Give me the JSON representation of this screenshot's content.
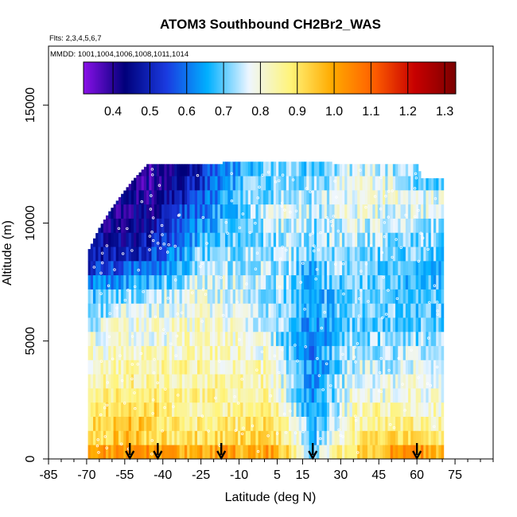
{
  "chart_data": {
    "type": "heatmap",
    "title": "ATOM3 Southbound CH2Br2_WAS",
    "annotations": {
      "flights": "Flts: 2,3,4,5,6,7",
      "dates": "MMDD: 1001,1004,1006,1008,1011,1014"
    },
    "xlabel": "Latitude (deg N)",
    "ylabel": "Altitude (m)",
    "xlim": [
      -85,
      90
    ],
    "ylim": [
      0,
      17500
    ],
    "x_ticks": [
      -85,
      -70,
      -55,
      -40,
      -25,
      -10,
      5,
      15,
      30,
      45,
      60,
      75
    ],
    "x_minor_ticks": [
      -80,
      -75,
      -65,
      -60,
      -50,
      -45,
      -35,
      -30,
      -20,
      -15,
      -5,
      0,
      10,
      20,
      25,
      35,
      40,
      50,
      55,
      65,
      70,
      80,
      85,
      90
    ],
    "y_ticks": [
      0,
      5000,
      10000,
      15000
    ],
    "colorbar": {
      "range": [
        0.32,
        1.33
      ],
      "ticks": [
        0.4,
        0.5,
        0.6,
        0.7,
        0.8,
        0.9,
        1.0,
        1.1,
        1.2,
        1.3
      ],
      "tick_labels": [
        "0.4",
        "0.5",
        "0.6",
        "0.7",
        "0.8",
        "0.9",
        "1.0",
        "1.1",
        "1.2",
        "1.3"
      ],
      "colors": [
        "#8a10e8",
        "#00007a",
        "#1a3ae0",
        "#00b0ff",
        "#eef6ff",
        "#fff47a",
        "#ffab00",
        "#ff6000",
        "#c80000",
        "#7a0000"
      ]
    },
    "altitude_bins": [
      0,
      600,
      1200,
      1800,
      2400,
      3000,
      3600,
      4200,
      4800,
      5400,
      6000,
      6600,
      7200,
      7800,
      8400,
      9000,
      9600,
      10200,
      10800,
      11400,
      12000,
      12600
    ],
    "column_top_altitude": [
      {
        "lat": -69,
        "top": 8900
      },
      {
        "lat": -65,
        "top": 9800
      },
      {
        "lat": -61,
        "top": 10500
      },
      {
        "lat": -57,
        "top": 11100
      },
      {
        "lat": -52,
        "top": 11800
      },
      {
        "lat": -46,
        "top": 12500
      },
      {
        "lat": -17,
        "top": 12500
      },
      {
        "lat": -16,
        "top": 12900
      },
      {
        "lat": 26,
        "top": 12900
      },
      {
        "lat": 27,
        "top": 12500
      },
      {
        "lat": 60,
        "top": 12500
      },
      {
        "lat": 62,
        "top": 11900
      },
      {
        "lat": 70,
        "top": 11900
      }
    ],
    "profiles": [
      {
        "lat": -69,
        "values": [
          1.02,
          0.92,
          0.9,
          0.88,
          0.86,
          0.84,
          0.82,
          0.8,
          0.78,
          0.75,
          0.72,
          0.68,
          0.6,
          0.52,
          0.48
        ]
      },
      {
        "lat": -60,
        "values": [
          1.02,
          0.95,
          0.93,
          0.92,
          0.88,
          0.85,
          0.85,
          0.82,
          0.8,
          0.78,
          0.74,
          0.7,
          0.62,
          0.55,
          0.48,
          0.45,
          0.42
        ]
      },
      {
        "lat": -52,
        "values": [
          1.05,
          0.97,
          0.98,
          0.92,
          0.88,
          0.86,
          0.84,
          0.82,
          0.8,
          0.8,
          0.78,
          0.72,
          0.65,
          0.58,
          0.5,
          0.46,
          0.44,
          0.42,
          0.42,
          0.4
        ]
      },
      {
        "lat": -44,
        "values": [
          1.02,
          0.92,
          0.9,
          0.92,
          0.88,
          0.86,
          0.85,
          0.83,
          0.8,
          0.82,
          0.78,
          0.74,
          0.66,
          0.6,
          0.55,
          0.5,
          0.46,
          0.44,
          0.42,
          0.4,
          0.4
        ]
      },
      {
        "lat": -35,
        "values": [
          0.98,
          0.9,
          0.88,
          0.86,
          0.85,
          0.84,
          0.84,
          0.82,
          0.8,
          0.8,
          0.78,
          0.76,
          0.72,
          0.66,
          0.62,
          0.58,
          0.55,
          0.52,
          0.48,
          0.46,
          0.44
        ]
      },
      {
        "lat": -26,
        "values": [
          0.98,
          0.9,
          0.88,
          0.86,
          0.86,
          0.85,
          0.84,
          0.84,
          0.82,
          0.82,
          0.8,
          0.78,
          0.76,
          0.72,
          0.7,
          0.66,
          0.62,
          0.6,
          0.56,
          0.52,
          0.5
        ]
      },
      {
        "lat": -17,
        "values": [
          1.02,
          0.9,
          0.88,
          0.86,
          0.85,
          0.84,
          0.83,
          0.82,
          0.82,
          0.8,
          0.8,
          0.78,
          0.76,
          0.74,
          0.72,
          0.7,
          0.68,
          0.66,
          0.64,
          0.62,
          0.62,
          0.64
        ]
      },
      {
        "lat": -8,
        "values": [
          0.98,
          0.92,
          0.88,
          0.86,
          0.85,
          0.84,
          0.84,
          0.82,
          0.8,
          0.78,
          0.78,
          0.76,
          0.76,
          0.74,
          0.74,
          0.72,
          0.72,
          0.7,
          0.7,
          0.68,
          0.66,
          0.65
        ]
      },
      {
        "lat": 1,
        "values": [
          1.02,
          0.94,
          0.9,
          0.88,
          0.86,
          0.84,
          0.82,
          0.8,
          0.78,
          0.76,
          0.75,
          0.74,
          0.74,
          0.74,
          0.72,
          0.72,
          0.74,
          0.74,
          0.72,
          0.7,
          0.7,
          0.68
        ]
      },
      {
        "lat": 10,
        "values": [
          0.92,
          0.85,
          0.82,
          0.78,
          0.76,
          0.74,
          0.72,
          0.7,
          0.68,
          0.7,
          0.7,
          0.7,
          0.72,
          0.72,
          0.74,
          0.74,
          0.76,
          0.78,
          0.76,
          0.74,
          0.72,
          0.7
        ]
      },
      {
        "lat": 19,
        "values": [
          0.7,
          0.68,
          0.66,
          0.64,
          0.64,
          0.63,
          0.62,
          0.62,
          0.62,
          0.62,
          0.64,
          0.64,
          0.66,
          0.66,
          0.68,
          0.7,
          0.72,
          0.74,
          0.74,
          0.72,
          0.7,
          0.68
        ]
      },
      {
        "lat": 26,
        "values": [
          0.82,
          0.76,
          0.74,
          0.72,
          0.7,
          0.7,
          0.68,
          0.68,
          0.66,
          0.66,
          0.68,
          0.68,
          0.7,
          0.72,
          0.72,
          0.74,
          0.74,
          0.76,
          0.76,
          0.74,
          0.72,
          0.7
        ]
      },
      {
        "lat": 35,
        "values": [
          0.92,
          0.86,
          0.84,
          0.82,
          0.8,
          0.78,
          0.76,
          0.74,
          0.72,
          0.7,
          0.7,
          0.7,
          0.7,
          0.72,
          0.72,
          0.74,
          0.76,
          0.78,
          0.8,
          0.78,
          0.76
        ]
      },
      {
        "lat": 44,
        "values": [
          0.96,
          0.9,
          0.86,
          0.84,
          0.8,
          0.78,
          0.76,
          0.74,
          0.72,
          0.7,
          0.7,
          0.7,
          0.7,
          0.7,
          0.72,
          0.74,
          0.76,
          0.78,
          0.8,
          0.78,
          0.76
        ]
      },
      {
        "lat": 53,
        "values": [
          1.05,
          0.92,
          0.88,
          0.84,
          0.8,
          0.78,
          0.76,
          0.74,
          0.72,
          0.7,
          0.7,
          0.68,
          0.68,
          0.68,
          0.7,
          0.72,
          0.74,
          0.76,
          0.78,
          0.78,
          0.74
        ]
      },
      {
        "lat": 62,
        "values": [
          1.02,
          0.9,
          0.86,
          0.82,
          0.8,
          0.78,
          0.76,
          0.74,
          0.72,
          0.7,
          0.68,
          0.68,
          0.68,
          0.68,
          0.7,
          0.72,
          0.74,
          0.76,
          0.76,
          0.7
        ]
      },
      {
        "lat": 70,
        "values": [
          0.95,
          0.88,
          0.84,
          0.82,
          0.8,
          0.78,
          0.76,
          0.74,
          0.72,
          0.7,
          0.7,
          0.68,
          0.68,
          0.68,
          0.7,
          0.72,
          0.74,
          0.76,
          0.76,
          0.7
        ]
      }
    ],
    "flight_markers_lat": [
      -53,
      -42,
      -17,
      19,
      60
    ]
  }
}
